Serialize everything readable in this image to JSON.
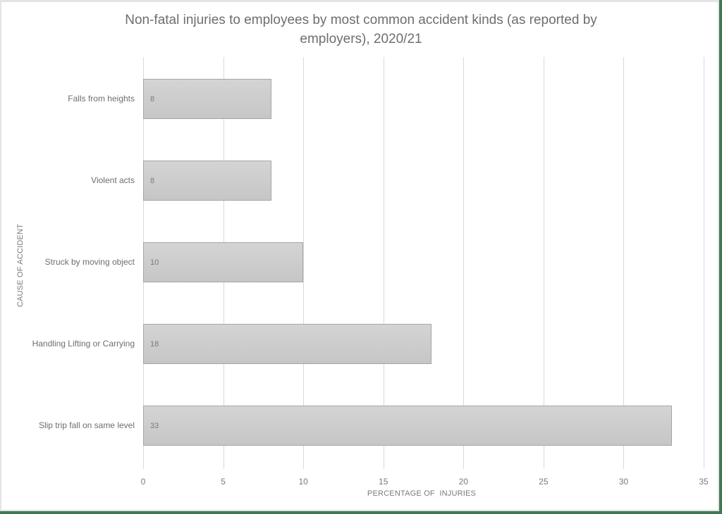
{
  "chart_data": {
    "type": "bar",
    "orientation": "horizontal",
    "title": "Non-fatal injuries to employees by most common accident kinds (as reported by employers), 2020/21",
    "title_lines": [
      "Non-fatal injuries to employees by most common accident kinds (as reported by",
      "employers), 2020/21"
    ],
    "categories": [
      "Falls from heights",
      "Violent acts",
      "Struck by moving object",
      "Handling Lifting or Carrying",
      "Slip trip fall on same level"
    ],
    "values": [
      8,
      8,
      10,
      18,
      33
    ],
    "value_labels": [
      "8",
      "8",
      "10",
      "18",
      "33"
    ],
    "xlabel": "PERCENTAGE OF  INJURIES",
    "ylabel": "CAUSE OF ACCIDENT",
    "xlim": [
      0,
      35
    ],
    "x_ticks": [
      "0",
      "5",
      "10",
      "15",
      "20",
      "25",
      "30",
      "35"
    ],
    "grid": "vertical",
    "legend": "none",
    "bar_color": "#c9c9c9"
  }
}
